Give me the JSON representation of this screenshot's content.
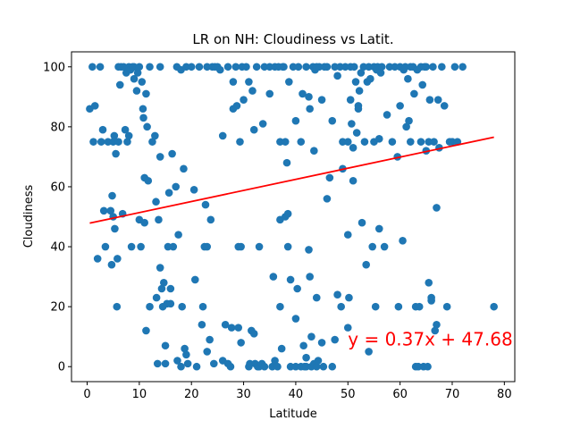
{
  "chart_data": {
    "type": "scatter",
    "title": "LR on NH: Cloudiness vs Latit.",
    "xlabel": "Latitude",
    "ylabel": "Cloudiness",
    "xlim": [
      -3,
      82
    ],
    "ylim": [
      -5,
      105
    ],
    "xticks": [
      0,
      10,
      20,
      30,
      40,
      50,
      60,
      70,
      80
    ],
    "yticks": [
      0,
      20,
      40,
      60,
      80,
      100
    ],
    "grid": false,
    "point_color": "#1f77b4",
    "regression": {
      "slope": 0.37,
      "intercept": 47.68,
      "x_range": [
        0.5,
        78
      ],
      "color": "#ff0000",
      "label": "y = 0.37x + 47.68",
      "label_x": 50,
      "label_y": 7
    },
    "points": [
      [
        0.5,
        86
      ],
      [
        1,
        100
      ],
      [
        1.2,
        75
      ],
      [
        1.5,
        87
      ],
      [
        2,
        36
      ],
      [
        2.5,
        100
      ],
      [
        2.7,
        75
      ],
      [
        3,
        79
      ],
      [
        3.2,
        52
      ],
      [
        3.5,
        40
      ],
      [
        4,
        75
      ],
      [
        4.5,
        52
      ],
      [
        4.7,
        34
      ],
      [
        4.8,
        57
      ],
      [
        5,
        75
      ],
      [
        5,
        50
      ],
      [
        5.2,
        77
      ],
      [
        5.3,
        46
      ],
      [
        5.5,
        71
      ],
      [
        5.7,
        20
      ],
      [
        5.8,
        36
      ],
      [
        6,
        75
      ],
      [
        6,
        100
      ],
      [
        6.3,
        94
      ],
      [
        6.5,
        100
      ],
      [
        6.8,
        51
      ],
      [
        7,
        100
      ],
      [
        7.3,
        79
      ],
      [
        7.5,
        98
      ],
      [
        7.7,
        75
      ],
      [
        8,
        100
      ],
      [
        8,
        77
      ],
      [
        8.3,
        99
      ],
      [
        8.5,
        40
      ],
      [
        8.7,
        100
      ],
      [
        9,
        96
      ],
      [
        9,
        100
      ],
      [
        9.5,
        92
      ],
      [
        9.7,
        98
      ],
      [
        10,
        100
      ],
      [
        10,
        49
      ],
      [
        10.3,
        40
      ],
      [
        10.5,
        95
      ],
      [
        10.7,
        86
      ],
      [
        10.8,
        83
      ],
      [
        11,
        63
      ],
      [
        11,
        48
      ],
      [
        11.3,
        91
      ],
      [
        11.3,
        12
      ],
      [
        11.5,
        80
      ],
      [
        11.7,
        62
      ],
      [
        12,
        100
      ],
      [
        12,
        20
      ],
      [
        12.5,
        75
      ],
      [
        13,
        77
      ],
      [
        13.2,
        55
      ],
      [
        13.3,
        23
      ],
      [
        13.5,
        1
      ],
      [
        13.7,
        49
      ],
      [
        14,
        70
      ],
      [
        14,
        33
      ],
      [
        14,
        100
      ],
      [
        14.3,
        26
      ],
      [
        14.5,
        20
      ],
      [
        14.7,
        28
      ],
      [
        15,
        1
      ],
      [
        15,
        7
      ],
      [
        15.3,
        21
      ],
      [
        15.5,
        40
      ],
      [
        15.7,
        58
      ],
      [
        16,
        26
      ],
      [
        16,
        21
      ],
      [
        16.3,
        71
      ],
      [
        16.5,
        40
      ],
      [
        17,
        60
      ],
      [
        17.2,
        100
      ],
      [
        17.3,
        2
      ],
      [
        17.5,
        44
      ],
      [
        18,
        0
      ],
      [
        18,
        99
      ],
      [
        18.2,
        20
      ],
      [
        18.5,
        66
      ],
      [
        18.7,
        6
      ],
      [
        19,
        100
      ],
      [
        19,
        4
      ],
      [
        19.3,
        1
      ],
      [
        20,
        100
      ],
      [
        20.5,
        59
      ],
      [
        20.7,
        29
      ],
      [
        21,
        0
      ],
      [
        21.5,
        100
      ],
      [
        22,
        14
      ],
      [
        22.2,
        20
      ],
      [
        22.5,
        40
      ],
      [
        22.7,
        54
      ],
      [
        23,
        100
      ],
      [
        23,
        40
      ],
      [
        23,
        5
      ],
      [
        23.5,
        9
      ],
      [
        23.7,
        49
      ],
      [
        24,
        100
      ],
      [
        24.3,
        1
      ],
      [
        24.5,
        100
      ],
      [
        25,
        100
      ],
      [
        25.5,
        99
      ],
      [
        26,
        2
      ],
      [
        26,
        77
      ],
      [
        26.5,
        14
      ],
      [
        27,
        100
      ],
      [
        27,
        1
      ],
      [
        27.5,
        0
      ],
      [
        27.7,
        13
      ],
      [
        28,
        95
      ],
      [
        28,
        86
      ],
      [
        28.5,
        100
      ],
      [
        28.7,
        87
      ],
      [
        29,
        13
      ],
      [
        29,
        40
      ],
      [
        29.3,
        75
      ],
      [
        29.5,
        8
      ],
      [
        29.5,
        40
      ],
      [
        29.7,
        100
      ],
      [
        30,
        89
      ],
      [
        30.5,
        100
      ],
      [
        31,
        0
      ],
      [
        31,
        95
      ],
      [
        31.2,
        1
      ],
      [
        31.5,
        12
      ],
      [
        31.7,
        92
      ],
      [
        32,
        11
      ],
      [
        32,
        79
      ],
      [
        32.2,
        1
      ],
      [
        32.5,
        100
      ],
      [
        32.7,
        0
      ],
      [
        33,
        40
      ],
      [
        33,
        0
      ],
      [
        33.5,
        1
      ],
      [
        33.7,
        81
      ],
      [
        34,
        100
      ],
      [
        34,
        0
      ],
      [
        35,
        91
      ],
      [
        35,
        100
      ],
      [
        35.5,
        0
      ],
      [
        35.7,
        30
      ],
      [
        36,
        2
      ],
      [
        36,
        100
      ],
      [
        36.5,
        0
      ],
      [
        36.7,
        100
      ],
      [
        37,
        75
      ],
      [
        37,
        20
      ],
      [
        37,
        49
      ],
      [
        37.3,
        6
      ],
      [
        37.5,
        100
      ],
      [
        37.7,
        100
      ],
      [
        38,
        50
      ],
      [
        38,
        75
      ],
      [
        38.3,
        68
      ],
      [
        38.5,
        51
      ],
      [
        38.5,
        40
      ],
      [
        38.7,
        95
      ],
      [
        39,
        0
      ],
      [
        39,
        29
      ],
      [
        39.5,
        100
      ],
      [
        40,
        0
      ],
      [
        40,
        82
      ],
      [
        40,
        16
      ],
      [
        40.3,
        26
      ],
      [
        40.5,
        100
      ],
      [
        41,
        0
      ],
      [
        41,
        75
      ],
      [
        41.3,
        91
      ],
      [
        41.5,
        7
      ],
      [
        41.7,
        0
      ],
      [
        42,
        100
      ],
      [
        42,
        3
      ],
      [
        42,
        0
      ],
      [
        42.5,
        90
      ],
      [
        42.5,
        39
      ],
      [
        42.7,
        30
      ],
      [
        42.7,
        86
      ],
      [
        43,
        10
      ],
      [
        43,
        0
      ],
      [
        43.3,
        100
      ],
      [
        43.5,
        72
      ],
      [
        43.5,
        1
      ],
      [
        43.7,
        99
      ],
      [
        44,
        100
      ],
      [
        44,
        23
      ],
      [
        44,
        0
      ],
      [
        44.3,
        2
      ],
      [
        44.5,
        100
      ],
      [
        45,
        89
      ],
      [
        45,
        8
      ],
      [
        45.3,
        0
      ],
      [
        45.5,
        100
      ],
      [
        46,
        100
      ],
      [
        46,
        56
      ],
      [
        46.5,
        63
      ],
      [
        47,
        82
      ],
      [
        47,
        0
      ],
      [
        47.5,
        9
      ],
      [
        47.5,
        100
      ],
      [
        48,
        24
      ],
      [
        48,
        97
      ],
      [
        48.5,
        100
      ],
      [
        48.7,
        20
      ],
      [
        49,
        75
      ],
      [
        49,
        66
      ],
      [
        49.5,
        100
      ],
      [
        50,
        75
      ],
      [
        50,
        13
      ],
      [
        50,
        44
      ],
      [
        50.2,
        23
      ],
      [
        50.5,
        89
      ],
      [
        50.5,
        100
      ],
      [
        50.7,
        81
      ],
      [
        51,
        62
      ],
      [
        51,
        73
      ],
      [
        51.2,
        100
      ],
      [
        51.5,
        95
      ],
      [
        51.7,
        78
      ],
      [
        52,
        87
      ],
      [
        52,
        86
      ],
      [
        52.2,
        92
      ],
      [
        52.5,
        98
      ],
      [
        52.7,
        48
      ],
      [
        53,
        100
      ],
      [
        53.2,
        75
      ],
      [
        53.5,
        34
      ],
      [
        53.7,
        95
      ],
      [
        54,
        5
      ],
      [
        54,
        100
      ],
      [
        54.3,
        96
      ],
      [
        54.7,
        40
      ],
      [
        55,
        75
      ],
      [
        55,
        100
      ],
      [
        55.3,
        20
      ],
      [
        55.5,
        99
      ],
      [
        55.7,
        100
      ],
      [
        56,
        46
      ],
      [
        56,
        76
      ],
      [
        56.3,
        98
      ],
      [
        56.5,
        100
      ],
      [
        57,
        40
      ],
      [
        57.5,
        84
      ],
      [
        58,
        100
      ],
      [
        58.5,
        75
      ],
      [
        59,
        100
      ],
      [
        59.5,
        70
      ],
      [
        59.7,
        20
      ],
      [
        60,
        100
      ],
      [
        60,
        87
      ],
      [
        60.5,
        42
      ],
      [
        60.7,
        99
      ],
      [
        61,
        100
      ],
      [
        61.2,
        80
      ],
      [
        61.5,
        96
      ],
      [
        61.7,
        82
      ],
      [
        62,
        75
      ],
      [
        62,
        100
      ],
      [
        62.5,
        100
      ],
      [
        62.7,
        91
      ],
      [
        63,
        0
      ],
      [
        63,
        20
      ],
      [
        63.3,
        99
      ],
      [
        63.5,
        0
      ],
      [
        63.7,
        20
      ],
      [
        64,
        100
      ],
      [
        64,
        75
      ],
      [
        64.3,
        94
      ],
      [
        64.5,
        0
      ],
      [
        64.7,
        100
      ],
      [
        65,
        100
      ],
      [
        65,
        72
      ],
      [
        65.3,
        0
      ],
      [
        65.5,
        75
      ],
      [
        65.5,
        28
      ],
      [
        65.7,
        89
      ],
      [
        66,
        23
      ],
      [
        66,
        22
      ],
      [
        66.3,
        100
      ],
      [
        66.5,
        75
      ],
      [
        66.7,
        12
      ],
      [
        67,
        53
      ],
      [
        67,
        14
      ],
      [
        67.3,
        89
      ],
      [
        67.5,
        73
      ],
      [
        68,
        100
      ],
      [
        68.5,
        87
      ],
      [
        69,
        20
      ],
      [
        69.5,
        75
      ],
      [
        70,
        75
      ],
      [
        70.5,
        100
      ],
      [
        71,
        75
      ],
      [
        72,
        100
      ],
      [
        78,
        20
      ]
    ]
  }
}
